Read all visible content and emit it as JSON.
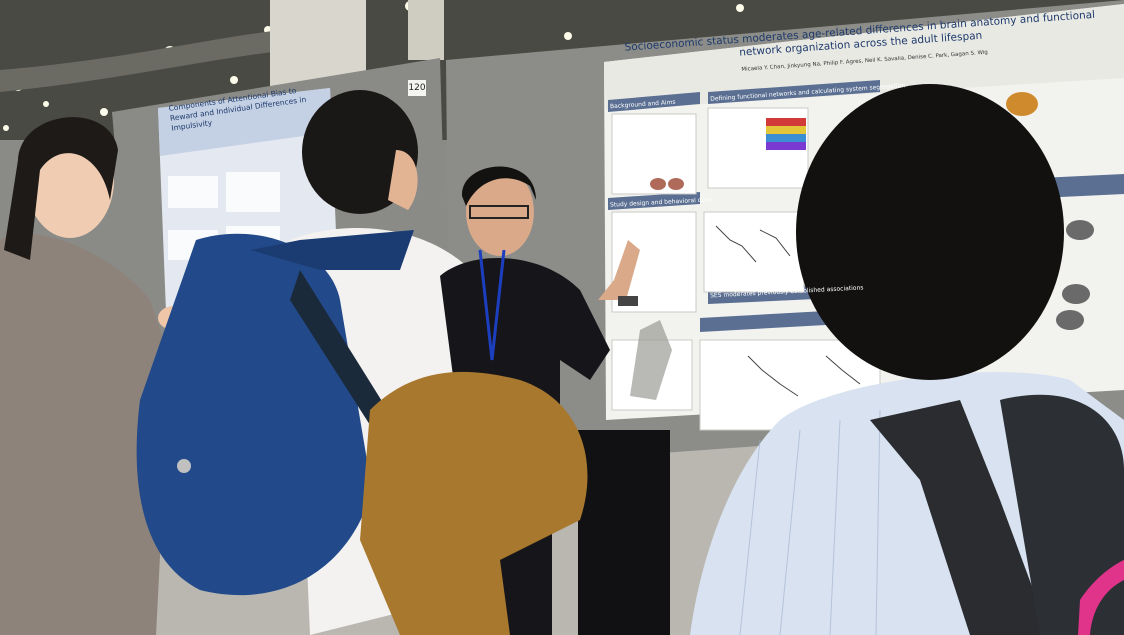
{
  "scene": {
    "description_tags": [
      "poster-session",
      "conference",
      "presenter",
      "attendees"
    ],
    "colors": {
      "ceiling": "#4a4a44",
      "board": "#8c8c88",
      "poster_header": "#c8d4e6",
      "poster_bg": "#f2f2ef",
      "section_bar": "#5a6f92",
      "floor": "#b9b7b0",
      "backpack_blue": "#224a8a",
      "coat_brown": "#a8782e",
      "coat_grey": "#8e837a"
    }
  },
  "posters": {
    "right": {
      "title": "Socioeconomic status moderates age-related differences in brain anatomy and functional network organization across the adult lifespan",
      "authors": "Micaela Y. Chan, Jinkyung Na, Philip F. Agres, Neil K. Savalia, Denise C. Park, Gagan S. Wig",
      "sections": [
        "Background and Aims",
        "Defining functional networks and calculating system segregation",
        "Study design and behavioral data",
        "SES moderates previously established associations"
      ]
    },
    "left": {
      "title": "Components of Attentional Bias to Reward and Individual Differences in Impulsivity"
    }
  },
  "board": {
    "number": "120"
  }
}
